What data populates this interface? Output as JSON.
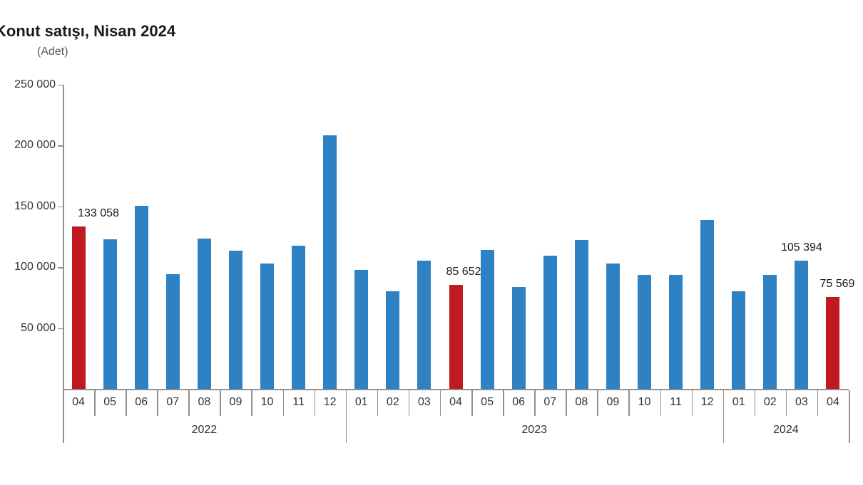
{
  "chart_data": {
    "type": "bar",
    "title": "Konut satışı, Nisan 2024",
    "unit_label": "(Adet)",
    "xlabel": "",
    "ylabel": "",
    "ylim": [
      0,
      250000
    ],
    "ytick_step": 50000,
    "ytick_labels": [
      "50 000",
      "100 000",
      "150 000",
      "200 000",
      "250 000"
    ],
    "grid": false,
    "legend": "none",
    "thousands_separator": " ",
    "colors": {
      "bar": "#2E82C4",
      "highlight": "#C01A20",
      "axis": "#909090",
      "title_text": "#1A1A1A",
      "tick_text": "#333333",
      "unit_text": "#595959"
    },
    "groups": [
      {
        "year": "2022",
        "months": [
          "04",
          "05",
          "06",
          "07",
          "08",
          "09",
          "10",
          "11",
          "12"
        ],
        "values": [
          133058,
          122768,
          150509,
          93902,
          123491,
          113366,
          102660,
          117806,
          207963
        ]
      },
      {
        "year": "2023",
        "months": [
          "01",
          "02",
          "03",
          "04",
          "05",
          "06",
          "07",
          "08",
          "09",
          "10",
          "11",
          "12"
        ],
        "values": [
          97708,
          80031,
          105476,
          85652,
          113888,
          83636,
          109548,
          122091,
          102656,
          93761,
          93514,
          138577
        ]
      },
      {
        "year": "2024",
        "months": [
          "01",
          "02",
          "03",
          "04"
        ],
        "values": [
          80308,
          93842,
          105394,
          75569
        ]
      }
    ],
    "highlight_indices": [
      0,
      12,
      24
    ],
    "data_labels": [
      {
        "index": 0,
        "text": "133 058",
        "dx": 28
      },
      {
        "index": 12,
        "text": "85 652",
        "dx": 11
      },
      {
        "index": 23,
        "text": "105 394",
        "dx": 0
      },
      {
        "index": 24,
        "text": "75 569",
        "dx": 6
      }
    ]
  }
}
